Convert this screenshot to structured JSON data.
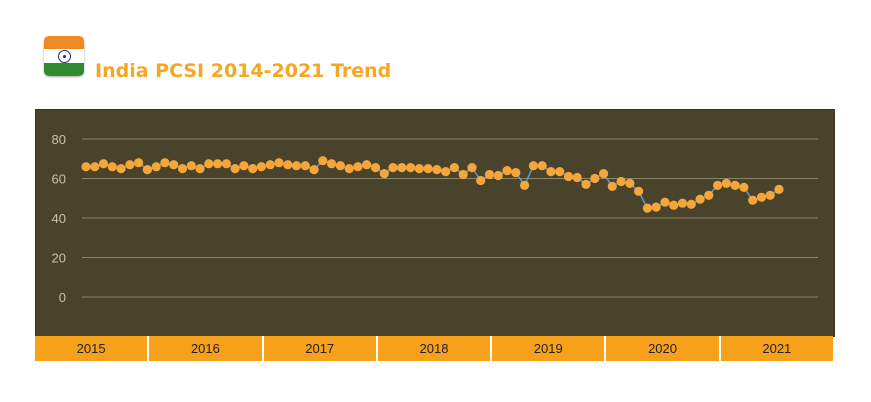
{
  "header": {
    "title": "India PCSI 2014-2021 Trend",
    "flag_icon": "india-flag-icon",
    "flag_colors": {
      "saffron": "#f08a24",
      "white": "#ffffff",
      "green": "#2e8b2e",
      "chakra": "#1a2a8a"
    }
  },
  "colors": {
    "title": "#f5a623",
    "plot_background": "#4a432c",
    "gridline": "#8a8468",
    "axis_text": "#c9c3a6",
    "line": "#5b9bd5",
    "marker": "#f5a63a",
    "year_bar": "#f7a01a"
  },
  "chart_data": {
    "type": "line",
    "title": "India PCSI 2014-2021 Trend",
    "xlabel": "",
    "ylabel": "",
    "ylim": [
      0,
      80
    ],
    "yticks": [
      "0",
      "20",
      "40",
      "60",
      "80"
    ],
    "grid": true,
    "year_labels": [
      "2015",
      "2016",
      "2017",
      "2018",
      "2019",
      "2020",
      "2021"
    ],
    "series": [
      {
        "values": [
          66,
          66,
          67.5,
          66,
          65,
          67,
          68,
          64.5,
          66,
          68,
          67,
          65,
          66.5,
          65,
          67.5,
          67.5,
          67.5,
          65,
          66.5,
          65,
          66,
          67,
          68,
          67,
          66.5,
          66.5,
          64.5,
          69,
          67.5,
          66.5,
          65,
          66,
          67,
          65.5,
          62.5,
          65.5,
          65.5,
          65.5,
          65,
          65,
          64.5,
          63.5,
          65.5,
          62,
          65.5,
          59,
          62,
          61.5,
          64,
          63,
          56.5,
          66.5,
          66.5,
          63.5,
          63.5,
          61,
          60.5,
          57,
          60,
          62.5,
          56,
          58.5,
          57.5,
          53.5,
          45,
          45.5,
          48,
          46.5,
          47.5,
          47,
          49.5,
          51.5,
          56.5,
          57.5,
          56.5,
          55.5,
          49,
          50.5,
          51.5,
          54.5
        ]
      }
    ]
  }
}
